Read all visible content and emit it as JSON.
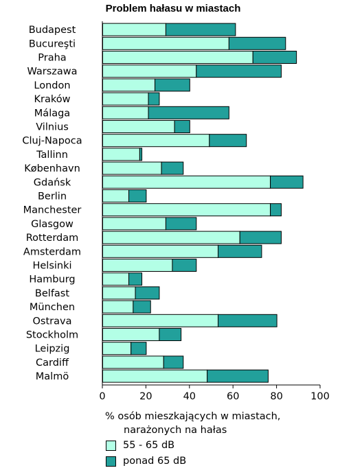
{
  "chart_data": {
    "type": "bar",
    "orientation": "horizontal",
    "stacked": true,
    "title": "Problem hałasu w miastach",
    "xlabel": [
      "%  osób mieszkających w miastach,",
      "narażonych na hałas"
    ],
    "xlim": [
      0,
      100
    ],
    "xticks": [
      0,
      20,
      40,
      60,
      80,
      100
    ],
    "grid": false,
    "legend_position": "bottom-left",
    "categories": [
      "Budapest",
      "Bucureşti",
      "Praha",
      "Warszawa",
      "London",
      "Kraków",
      "Málaga",
      "Vilnius",
      "Cluj-Napoca",
      "Tallinn",
      "København",
      "Gdańsk",
      "Berlin",
      "Manchester",
      "Glasgow",
      "Rotterdam",
      "Amsterdam",
      "Helsinki",
      "Hamburg",
      "Belfast",
      "München",
      "Ostrava",
      "Stockholm",
      "Leipzig",
      "Cardiff",
      "Malmö"
    ],
    "series": [
      {
        "name": "55 - 65 dB",
        "color": "#b3ffe6",
        "values": [
          29,
          58,
          69,
          43,
          24,
          21,
          21,
          33,
          49,
          17,
          27,
          77,
          12,
          77,
          29,
          63,
          53,
          32,
          12,
          15,
          14,
          53,
          26,
          13,
          28,
          48
        ]
      },
      {
        "name": "ponad 65 dB",
        "color": "#22a09b",
        "values": [
          32,
          26,
          20,
          39,
          16,
          5,
          37,
          7,
          17,
          1,
          10,
          15,
          8,
          5,
          14,
          19,
          20,
          11,
          6,
          11,
          8,
          27,
          10,
          7,
          9,
          28
        ]
      }
    ]
  }
}
